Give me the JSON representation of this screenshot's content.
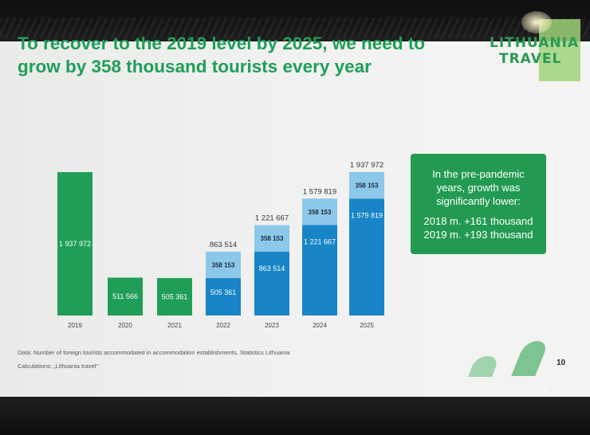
{
  "slide": {
    "title": "To recover to the 2019 level by 2025, we need to grow by 358 thousand tourists every year",
    "logo_line1": "LITHUANIA",
    "logo_line2": "TRAVEL",
    "page_number": "10",
    "source_line1": "Data: Number of foreign tourists accommodated in accommodation establishments, Statistics Lithuania",
    "source_line2": "Calculations: „Lithuania travel\""
  },
  "callout": {
    "line1": "In the pre-pandemic years, growth was significantly lower:",
    "line2": "2018 m. +161 thousand",
    "line3": "2019 m. +193 thousand"
  },
  "colors": {
    "green": "#1f9e57",
    "dark_blue": "#1785c7",
    "light_blue": "#8cc8ea",
    "callout_bg": "#239a52"
  },
  "chart_data": {
    "type": "bar",
    "stacked": true,
    "categories": [
      "2019",
      "2020",
      "2021",
      "2022",
      "2023",
      "2024",
      "2025"
    ],
    "series": [
      {
        "values": [
          1937972,
          511566,
          505361,
          505361,
          863514,
          1221667,
          1579819
        ],
        "labels": [
          "1 937 972",
          "511 566",
          "505 361",
          "505 361",
          "863 514",
          "1 221 667",
          "1 579 819"
        ]
      },
      {
        "values": [
          0,
          0,
          0,
          358153,
          358153,
          358153,
          358153
        ],
        "labels": [
          "",
          "",
          "",
          "358 153",
          "358 153",
          "358 153",
          "358 153"
        ]
      }
    ],
    "totals": [
      "",
      "",
      "",
      "863 514",
      "1 221 667",
      "1 579 819",
      "1 937 972"
    ],
    "base_colors": [
      "#1f9e57",
      "#1f9e57",
      "#1f9e57",
      "#1785c7",
      "#1785c7",
      "#1785c7",
      "#1785c7"
    ],
    "increment_color": "#8cc8ea"
  }
}
